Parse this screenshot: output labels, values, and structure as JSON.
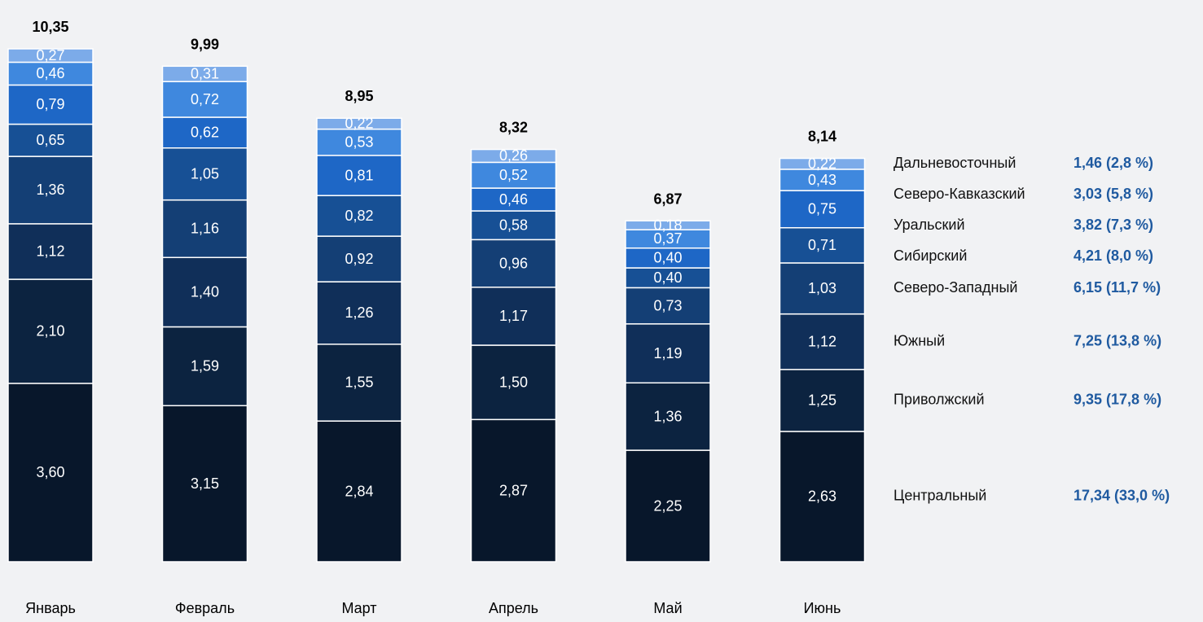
{
  "chart_data": {
    "type": "stacked_bar",
    "categories": [
      "Январь",
      "Февраль",
      "Март",
      "Апрель",
      "Май",
      "Июнь"
    ],
    "series": [
      {
        "name": "Центральный",
        "summary": "17,34 (33,0 %)",
        "color": "#08172b",
        "values": [
          3.6,
          3.15,
          2.84,
          2.87,
          2.25,
          2.63
        ],
        "value_labels": [
          "3,60",
          "3,15",
          "2,84",
          "2,87",
          "2,25",
          "2,63"
        ]
      },
      {
        "name": "Приволжский",
        "summary": "9,35 (17,8 %)",
        "color": "#0c2340",
        "values": [
          2.1,
          1.59,
          1.55,
          1.5,
          1.36,
          1.25
        ],
        "value_labels": [
          "2,10",
          "1,59",
          "1,55",
          "1,50",
          "1,36",
          "1,25"
        ]
      },
      {
        "name": "Южный",
        "summary": "7,25 (13,8 %)",
        "color": "#102f59",
        "values": [
          1.12,
          1.4,
          1.26,
          1.17,
          1.19,
          1.12
        ],
        "value_labels": [
          "1,12",
          "1,40",
          "1,26",
          "1,17",
          "1,19",
          "1,12"
        ]
      },
      {
        "name": "Северо-Западный",
        "summary": "6,15 (11,7 %)",
        "color": "#143f75",
        "values": [
          1.36,
          1.16,
          0.92,
          0.96,
          0.73,
          1.03
        ],
        "value_labels": [
          "1,36",
          "1,16",
          "0,92",
          "0,96",
          "0,73",
          "1,03"
        ]
      },
      {
        "name": "Сибирский",
        "summary": "4,21 (8,0 %)",
        "color": "#175095",
        "values": [
          0.65,
          1.05,
          0.82,
          0.58,
          0.4,
          0.71
        ],
        "value_labels": [
          "0,65",
          "1,05",
          "0,82",
          "0,58",
          "0,40",
          "0,71"
        ]
      },
      {
        "name": "Уральский",
        "summary": "3,82 (7,3 %)",
        "color": "#1e67c6",
        "values": [
          0.79,
          0.62,
          0.81,
          0.46,
          0.4,
          0.75
        ],
        "value_labels": [
          "0,79",
          "0,62",
          "0,81",
          "0,46",
          "0,40",
          "0,75"
        ]
      },
      {
        "name": "Северо-Кавказский",
        "summary": "3,03 (5,8 %)",
        "color": "#3f88de",
        "values": [
          0.46,
          0.72,
          0.53,
          0.52,
          0.37,
          0.43
        ],
        "value_labels": [
          "0,46",
          "0,72",
          "0,53",
          "0,52",
          "0,37",
          "0,43"
        ]
      },
      {
        "name": "Дальневосточный",
        "summary": "1,46 (2,8 %)",
        "color": "#7cabe9",
        "values": [
          0.27,
          0.31,
          0.22,
          0.26,
          0.18,
          0.22
        ],
        "value_labels": [
          "0,27",
          "0,31",
          "0,22",
          "0,26",
          "0,18",
          "0,22"
        ]
      }
    ],
    "totals": [
      10.35,
      9.99,
      8.95,
      8.32,
      6.87,
      8.14
    ],
    "total_labels": [
      "10,35",
      "9,99",
      "8,95",
      "8,32",
      "6,87",
      "8,14"
    ],
    "ylim": [
      0,
      10.35
    ]
  }
}
